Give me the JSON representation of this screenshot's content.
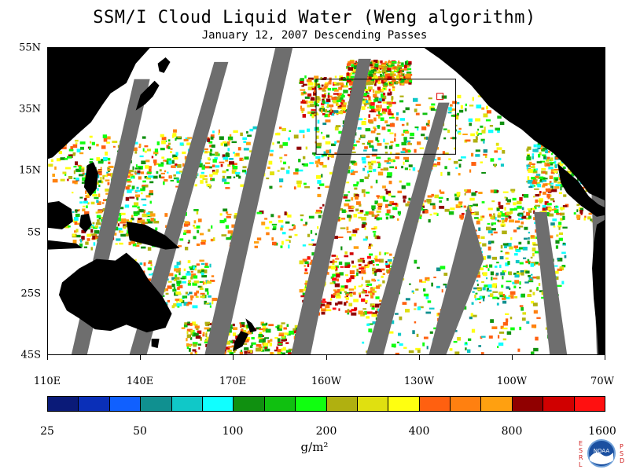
{
  "title": "SSM/I Cloud Liquid Water (Weng algorithm)",
  "subtitle": "January 12, 2007  Descending Passes",
  "map": {
    "lon_ticks": [
      "110E",
      "140E",
      "170E",
      "160W",
      "130W",
      "100W",
      "70W"
    ],
    "lat_ticks": [
      "55N",
      "35N",
      "15N",
      "5S",
      "25S",
      "45S"
    ],
    "extent": {
      "lon_min": 110,
      "lon_max": 290,
      "lat_min": -45,
      "lat_max": 55
    },
    "colors": {
      "land": "#000000",
      "no_data": "#6e6e6e",
      "background": "#ffffff",
      "box": "#000000",
      "marker": "#e00000"
    }
  },
  "colorbar": {
    "labels": [
      "25",
      "50",
      "100",
      "200",
      "400",
      "800",
      "1600"
    ],
    "colors": [
      "#0a1a78",
      "#0a2fb8",
      "#1060ff",
      "#109090",
      "#10c8c8",
      "#10ffff",
      "#109010",
      "#10c010",
      "#10ff10",
      "#b0b010",
      "#e0e010",
      "#ffff10",
      "#ff6010",
      "#ff8010",
      "#ffa010",
      "#900000",
      "#d00000",
      "#ff1010"
    ],
    "unit": "g/m²"
  },
  "logo": {
    "left_letters": [
      "E",
      "S",
      "R",
      "L"
    ],
    "right_letters": [
      "P",
      "S",
      "D"
    ],
    "center": "NOAA"
  }
}
